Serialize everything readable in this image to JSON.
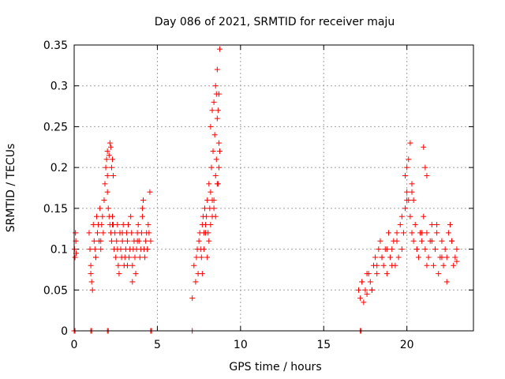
{
  "chart_data": {
    "type": "scatter",
    "title": "Day 086 of 2021, SRMTID for receiver maju",
    "xlabel": "GPS time / hours",
    "ylabel": "SRMTID / TECUs",
    "xlim": [
      0,
      24
    ],
    "ylim": [
      0,
      0.35
    ],
    "x_ticks": [
      0,
      5,
      10,
      15,
      20
    ],
    "x_tick_labels": [
      "0",
      "5",
      "10",
      "15",
      "20"
    ],
    "y_ticks": [
      0,
      0.05,
      0.1,
      0.15,
      0.2,
      0.25,
      0.3,
      0.35
    ],
    "y_tick_labels": [
      "0",
      "0.05",
      "0.1",
      "0.15",
      "0.2",
      "0.25",
      "0.3",
      "0.35"
    ],
    "grid": true,
    "marker": "+",
    "color": "#ff0000",
    "series": [
      {
        "name": "SRMTID",
        "x": [
          0.02,
          0.05,
          0.08,
          0.1,
          0.12,
          0.9,
          0.95,
          1.0,
          1.05,
          1.1,
          1.15,
          1.2,
          1.25,
          1.3,
          1.35,
          1.4,
          1.45,
          1.5,
          1.55,
          1.6,
          1.65,
          1.7,
          1.75,
          1.8,
          1.85,
          1.9,
          1.95,
          2.0,
          2.05,
          2.1,
          2.15,
          2.2,
          2.25,
          2.3,
          2.35,
          2.4,
          2.45,
          2.5,
          2.55,
          2.6,
          2.65,
          2.7,
          2.75,
          2.8,
          2.85,
          2.9,
          2.95,
          3.0,
          3.05,
          3.1,
          3.15,
          3.2,
          3.25,
          3.3,
          3.35,
          3.4,
          3.45,
          3.5,
          3.55,
          3.6,
          3.65,
          3.7,
          3.75,
          3.8,
          3.85,
          3.9,
          3.95,
          4.0,
          4.05,
          4.1,
          4.15,
          4.2,
          4.25,
          4.3,
          4.35,
          4.4,
          4.45,
          4.5,
          4.55,
          4.6,
          1.0,
          1.3,
          1.6,
          2.0,
          2.3,
          2.6,
          2.9,
          3.2,
          3.5,
          3.8,
          4.1,
          4.4,
          2.0,
          2.1,
          2.15,
          2.2,
          2.25,
          2.3,
          2.35,
          7.1,
          7.2,
          7.3,
          7.35,
          7.4,
          7.45,
          7.5,
          7.55,
          7.6,
          7.65,
          7.7,
          7.75,
          7.8,
          7.85,
          7.9,
          7.95,
          8.0,
          8.05,
          8.1,
          8.15,
          8.2,
          8.25,
          8.3,
          8.35,
          8.4,
          8.45,
          8.5,
          8.55,
          8.6,
          8.65,
          8.7,
          8.75,
          7.7,
          7.8,
          7.9,
          8.0,
          8.1,
          8.2,
          8.3,
          8.4,
          8.5,
          8.6,
          8.7,
          8.2,
          8.3,
          8.4,
          8.5,
          8.55,
          8.6,
          8.65,
          8.7,
          8.75,
          17.1,
          17.2,
          17.3,
          17.4,
          17.5,
          17.6,
          17.7,
          17.8,
          17.9,
          18.0,
          18.1,
          18.2,
          18.3,
          18.4,
          18.5,
          18.6,
          18.7,
          18.8,
          18.9,
          19.0,
          19.1,
          19.2,
          19.3,
          19.4,
          19.5,
          19.6,
          19.7,
          19.8,
          19.9,
          20.0,
          20.1,
          20.2,
          20.3,
          20.4,
          20.5,
          20.6,
          20.7,
          20.8,
          20.9,
          21.0,
          21.1,
          21.2,
          21.3,
          21.4,
          21.5,
          21.6,
          21.7,
          21.8,
          21.9,
          22.0,
          22.1,
          22.2,
          22.3,
          22.4,
          22.5,
          22.6,
          22.7,
          22.8,
          22.9,
          23.0,
          17.3,
          17.6,
          17.9,
          18.2,
          18.5,
          18.8,
          19.1,
          19.4,
          19.7,
          20.0,
          20.3,
          20.6,
          20.9,
          21.2,
          21.5,
          21.8,
          22.1,
          22.4,
          22.7,
          23.0,
          19.9,
          20.0,
          20.1,
          20.2,
          20.3,
          20.4,
          21.0,
          21.1,
          21.2,
          0.0,
          0.05,
          1.0,
          1.05,
          2.0,
          2.05,
          4.6,
          4.65,
          7.1,
          17.2,
          17.25
        ],
        "y": [
          0.1,
          0.09,
          0.12,
          0.11,
          0.095,
          0.12,
          0.1,
          0.08,
          0.06,
          0.05,
          0.13,
          0.11,
          0.1,
          0.09,
          0.14,
          0.12,
          0.13,
          0.11,
          0.15,
          0.1,
          0.13,
          0.14,
          0.12,
          0.16,
          0.18,
          0.2,
          0.21,
          0.19,
          0.15,
          0.14,
          0.13,
          0.12,
          0.11,
          0.14,
          0.13,
          0.1,
          0.12,
          0.09,
          0.11,
          0.13,
          0.08,
          0.07,
          0.12,
          0.1,
          0.09,
          0.11,
          0.13,
          0.08,
          0.09,
          0.1,
          0.12,
          0.11,
          0.13,
          0.09,
          0.1,
          0.14,
          0.12,
          0.08,
          0.1,
          0.11,
          0.09,
          0.07,
          0.1,
          0.12,
          0.13,
          0.11,
          0.09,
          0.1,
          0.12,
          0.14,
          0.16,
          0.1,
          0.09,
          0.11,
          0.12,
          0.1,
          0.13,
          0.12,
          0.17,
          0.11,
          0.07,
          0.09,
          0.11,
          0.17,
          0.13,
          0.1,
          0.12,
          0.08,
          0.06,
          0.11,
          0.15,
          0.1,
          0.22,
          0.215,
          0.23,
          0.225,
          0.2,
          0.21,
          0.19,
          0.04,
          0.08,
          0.06,
          0.09,
          0.1,
          0.07,
          0.11,
          0.12,
          0.1,
          0.09,
          0.13,
          0.14,
          0.12,
          0.15,
          0.13,
          0.14,
          0.16,
          0.12,
          0.18,
          0.15,
          0.17,
          0.2,
          0.14,
          0.22,
          0.16,
          0.24,
          0.19,
          0.21,
          0.26,
          0.18,
          0.23,
          0.22,
          0.07,
          0.1,
          0.12,
          0.09,
          0.11,
          0.13,
          0.16,
          0.15,
          0.14,
          0.18,
          0.2,
          0.25,
          0.27,
          0.28,
          0.3,
          0.29,
          0.32,
          0.27,
          0.29,
          0.345,
          0.05,
          0.04,
          0.06,
          0.035,
          0.05,
          0.045,
          0.07,
          0.06,
          0.05,
          0.08,
          0.09,
          0.07,
          0.1,
          0.11,
          0.09,
          0.08,
          0.1,
          0.07,
          0.12,
          0.09,
          0.1,
          0.11,
          0.08,
          0.12,
          0.09,
          0.13,
          0.14,
          0.12,
          0.15,
          0.17,
          0.16,
          0.14,
          0.12,
          0.11,
          0.13,
          0.1,
          0.09,
          0.12,
          0.11,
          0.14,
          0.1,
          0.12,
          0.09,
          0.11,
          0.13,
          0.08,
          0.1,
          0.12,
          0.07,
          0.09,
          0.11,
          0.08,
          0.1,
          0.09,
          0.12,
          0.13,
          0.11,
          0.08,
          0.09,
          0.1,
          0.06,
          0.07,
          0.05,
          0.08,
          0.09,
          0.1,
          0.08,
          0.11,
          0.1,
          0.16,
          0.17,
          0.1,
          0.12,
          0.08,
          0.11,
          0.13,
          0.09,
          0.06,
          0.11,
          0.085,
          0.19,
          0.2,
          0.21,
          0.23,
          0.18,
          0.16,
          0.225,
          0.2,
          0.19,
          0.0,
          0.0,
          0.0,
          0.0,
          0.0,
          0.0,
          0.0,
          0.0,
          0.0,
          0.0,
          0.0
        ]
      }
    ]
  }
}
